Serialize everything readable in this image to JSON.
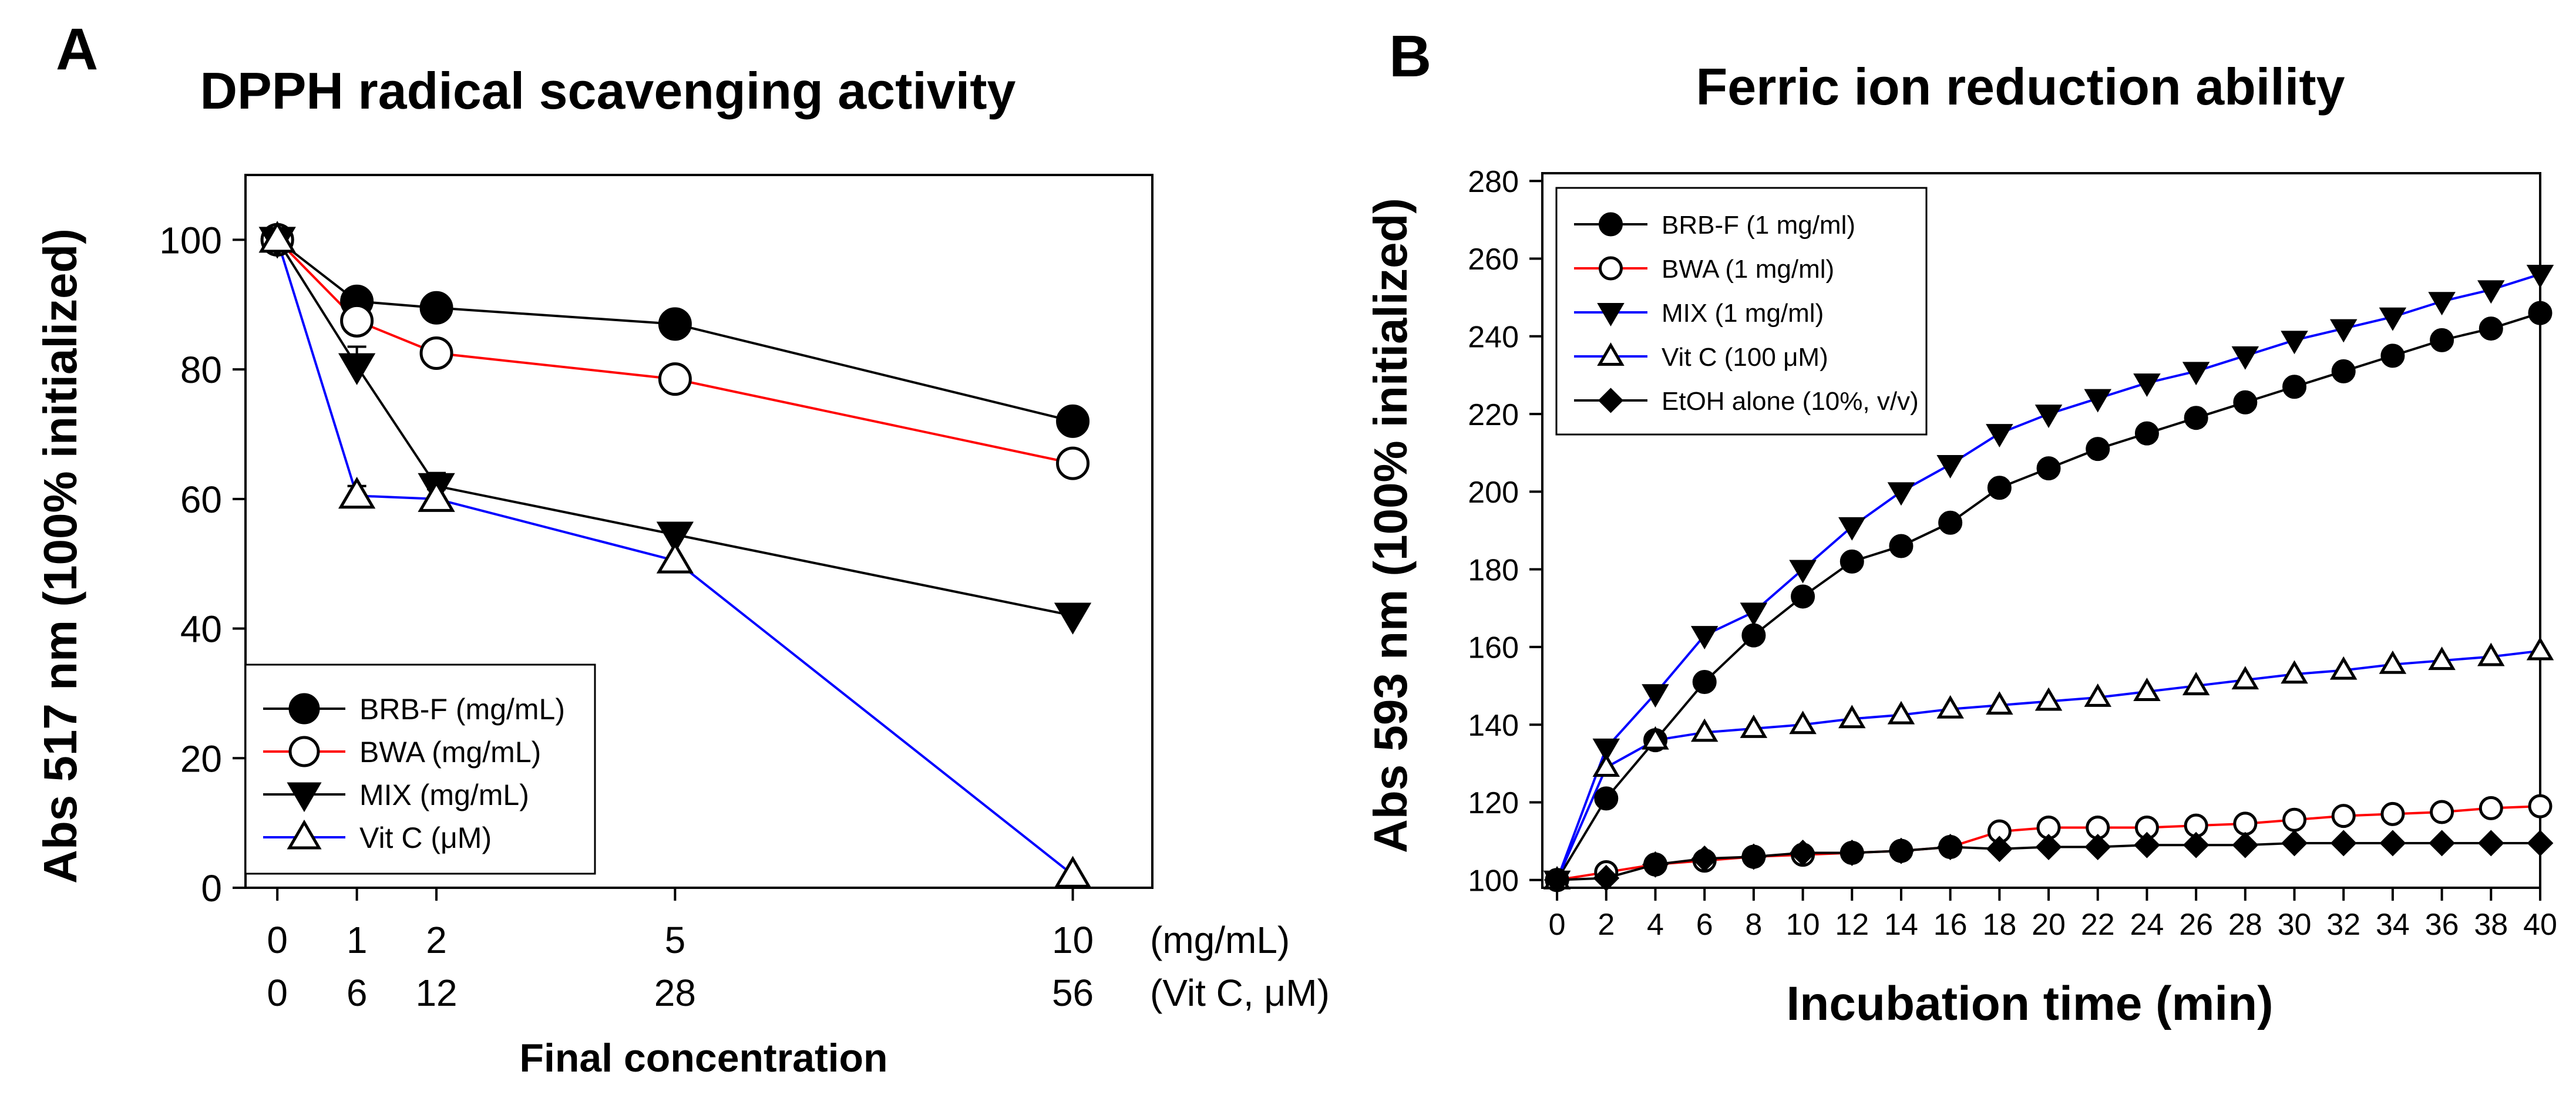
{
  "panel_labels": {
    "a": "A",
    "b": "B"
  },
  "chart_data": [
    {
      "type": "line",
      "title": "DPPH radical scavenging activity",
      "xlabel": "Final concentration",
      "ylabel": "Abs 517 nm (100% initialized)",
      "xlim": [
        -0.4,
        11.0
      ],
      "ylim": [
        0,
        110
      ],
      "grid": false,
      "legend_position": "bottom-left",
      "x_ticks": [
        0,
        1,
        2,
        5,
        10
      ],
      "x_tick_labels_row1": [
        "0",
        "1",
        "2",
        "5",
        "10"
      ],
      "x_tick_labels_row2": [
        "0",
        "6",
        "12",
        "28",
        "56"
      ],
      "x_unit_row1": "(mg/mL)",
      "x_unit_row2": "(Vit C, μM)",
      "y_ticks": [
        0,
        20,
        40,
        60,
        80,
        100
      ],
      "y_tick_labels": [
        "0",
        "20",
        "40",
        "60",
        "80",
        "100"
      ],
      "series": [
        {
          "name": "BRB-F",
          "legend_label": "BRB-F (mg/mL)",
          "marker": "circle-filled",
          "color": "#000000",
          "x": [
            0,
            1,
            2,
            5,
            10
          ],
          "values": [
            100,
            90.5,
            89.5,
            87,
            72
          ]
        },
        {
          "name": "BWA",
          "legend_label": "BWA (mg/mL)",
          "marker": "circle-open",
          "color": "#ff0000",
          "x": [
            0,
            1,
            2,
            5,
            10
          ],
          "values": [
            100,
            87.5,
            82.5,
            78.5,
            65.5
          ]
        },
        {
          "name": "MIX",
          "legend_label": "MIX (mg/mL)",
          "marker": "triangle-down-filled",
          "color": "#000000",
          "x": [
            0,
            1,
            2,
            5,
            10
          ],
          "values": [
            100,
            80.5,
            62,
            54.5,
            42
          ],
          "error": [
            0,
            3,
            2,
            0,
            0
          ]
        },
        {
          "name": "Vit C",
          "legend_label": "Vit C (μM)",
          "marker": "triangle-up-open",
          "color": "#0000ff",
          "x": [
            0,
            1,
            2,
            5,
            10
          ],
          "values": [
            100,
            60.5,
            60,
            50.5,
            2
          ],
          "error": [
            0,
            1.5,
            1.5,
            0,
            0
          ]
        }
      ]
    },
    {
      "type": "line",
      "title": "Ferric ion reduction ability",
      "xlabel": "Incubation time (min)",
      "ylabel": "Abs 593 nm (100% initialized)",
      "xlim": [
        -0.6,
        40
      ],
      "ylim": [
        98,
        282
      ],
      "grid": false,
      "legend_position": "top-left",
      "x_ticks": [
        0,
        2,
        4,
        6,
        8,
        10,
        12,
        14,
        16,
        18,
        20,
        22,
        24,
        26,
        28,
        30,
        32,
        34,
        36,
        38,
        40
      ],
      "x_tick_labels": [
        "0",
        "2",
        "4",
        "6",
        "8",
        "10",
        "12",
        "14",
        "16",
        "18",
        "20",
        "22",
        "24",
        "26",
        "28",
        "30",
        "32",
        "34",
        "36",
        "38",
        "40"
      ],
      "y_ticks": [
        100,
        120,
        140,
        160,
        180,
        200,
        220,
        240,
        260,
        280
      ],
      "y_tick_labels": [
        "100",
        "120",
        "140",
        "160",
        "180",
        "200",
        "220",
        "240",
        "260",
        "280"
      ],
      "x": [
        0,
        2,
        4,
        6,
        8,
        10,
        12,
        14,
        16,
        18,
        20,
        22,
        24,
        26,
        28,
        30,
        32,
        34,
        36,
        38,
        40
      ],
      "series": [
        {
          "name": "BRB-F",
          "legend_label": "BRB-F (1 mg/ml)",
          "marker": "circle-filled",
          "color": "#000000",
          "values": [
            100,
            121,
            136,
            151,
            163,
            173,
            182,
            186,
            192,
            201,
            206,
            211,
            215,
            219,
            223,
            227,
            231,
            235,
            239,
            242,
            246
          ]
        },
        {
          "name": "BWA",
          "legend_label": "BWA (1 mg/ml)",
          "marker": "circle-open",
          "color": "#ff0000",
          "values": [
            100,
            102,
            104,
            105,
            106,
            106.5,
            107,
            107.5,
            108.5,
            112.5,
            113.5,
            113.5,
            113.5,
            114,
            114.5,
            115.5,
            116.5,
            117,
            117.5,
            118.5,
            119
          ]
        },
        {
          "name": "MIX",
          "legend_label": "MIX (1 mg/ml)",
          "marker": "triangle-down-filled",
          "color": "#0000ff",
          "values": [
            100,
            134,
            148,
            163,
            169,
            180,
            191,
            200,
            207,
            215,
            220,
            224,
            228,
            231,
            235,
            239,
            242,
            245,
            249,
            252,
            256
          ]
        },
        {
          "name": "Vit C",
          "legend_label": "Vit C (100 μM)",
          "marker": "triangle-up-open",
          "color": "#0000ff",
          "values": [
            100,
            129,
            136,
            138,
            139,
            140,
            141.5,
            142.5,
            144,
            145,
            146,
            147,
            148.5,
            150,
            151.5,
            153,
            154,
            155.5,
            156.5,
            157.5,
            159
          ]
        },
        {
          "name": "EtOH alone",
          "legend_label": "EtOH alone (10%, v/v)",
          "marker": "diamond-filled",
          "color": "#000000",
          "values": [
            100,
            100.5,
            104,
            105.5,
            106,
            107,
            107,
            107.5,
            108.5,
            108,
            108.5,
            108.5,
            109,
            109,
            109,
            109.5,
            109.5,
            109.5,
            109.5,
            109.5,
            109.5
          ]
        }
      ]
    }
  ]
}
